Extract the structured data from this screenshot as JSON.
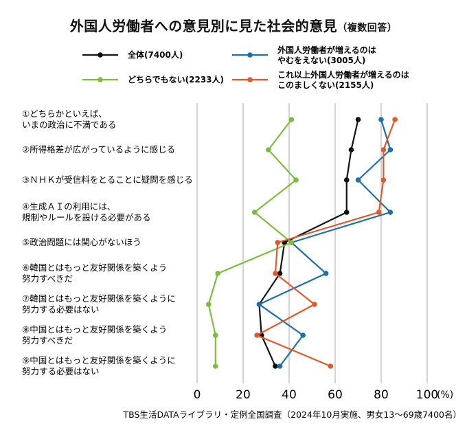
{
  "chart_data": {
    "type": "line",
    "title": "外国人労働者への意見別に見た社会的意見",
    "subtitle": "（複数回答）",
    "categories": [
      [
        "①どちらかといえば、",
        "いまの政治に不満である"
      ],
      [
        "②所得格差が広がっているように感じる"
      ],
      [
        "③ＮＨＫが受信料をとることに疑問を感じる"
      ],
      [
        "④生成ＡＩの利用には、",
        "規制やルールを設ける必要がある"
      ],
      [
        "⑤政治問題には関心がないほう"
      ],
      [
        "⑥韓国とはもっと友好関係を築くよう",
        "努力すべきだ"
      ],
      [
        "⑦韓国とはもっと友好関係を築くように",
        "努力する必要はない"
      ],
      [
        "⑧中国とはもっと友好関係を築くよう",
        "努力すべきだ"
      ],
      [
        "⑨中国とはもっと友好関係を築くように",
        "努力する必要はない"
      ]
    ],
    "xlim": [
      0,
      100
    ],
    "x_ticks": [
      "0",
      "20",
      "40",
      "60",
      "80",
      "100"
    ],
    "x_unit": "(%)",
    "series": [
      {
        "name": "全体(7400人)",
        "color": "#111111",
        "values": [
          70,
          67,
          65,
          65,
          38,
          36,
          27,
          28,
          34
        ]
      },
      {
        "name": "外国人労働者が増えるのは\nやむをえない(3005人)",
        "color": "#1f6fa8",
        "values": [
          80,
          84,
          70,
          84,
          41,
          56,
          27,
          46,
          36
        ]
      },
      {
        "name": "どちらでもない(2233人)",
        "color": "#7cbd3f",
        "values": [
          41,
          31,
          43,
          25,
          41,
          9,
          5,
          8,
          8
        ]
      },
      {
        "name": "これ以上外国人労働者が増えるのは\nこのましくない(2155人)",
        "color": "#e05a2b",
        "values": [
          86,
          81,
          81,
          79,
          35,
          34,
          51,
          26,
          58
        ]
      }
    ],
    "legend_position": "top"
  },
  "source": "TBS生活DATAライブラリ・定例全国調査（2024年10月実施、男女13〜69歳7400名）"
}
